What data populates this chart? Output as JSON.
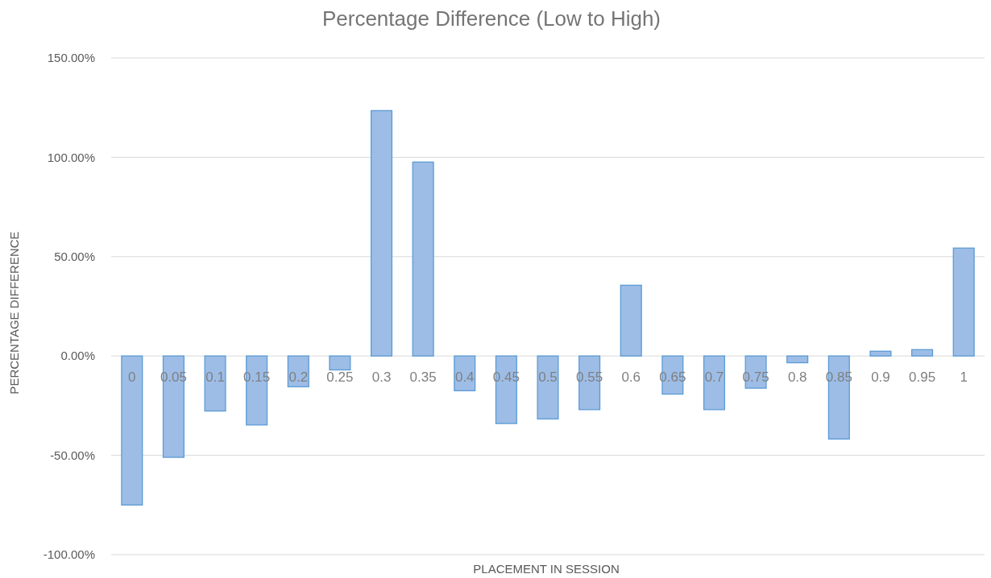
{
  "chart_data": {
    "type": "bar",
    "title": "Percentage Difference (Low to High)",
    "xlabel": "PLACEMENT IN SESSION",
    "ylabel": "PERCENTAGE DIFFERENCE",
    "categories": [
      "0",
      "0.05",
      "0.1",
      "0.15",
      "0.2",
      "0.25",
      "0.3",
      "0.35",
      "0.4",
      "0.45",
      "0.5",
      "0.55",
      "0.6",
      "0.65",
      "0.7",
      "0.75",
      "0.8",
      "0.85",
      "0.9",
      "0.95",
      "1"
    ],
    "values": [
      -75,
      -51,
      -27.7,
      -34.7,
      -15.5,
      -7,
      123.5,
      97.6,
      -17.5,
      -34,
      -31.7,
      -27,
      35.6,
      -19.2,
      -27,
      -16.2,
      -3.4,
      -41.8,
      2.4,
      3.2,
      54.3
    ],
    "color": "#9dbde6",
    "ylim": [
      -100,
      150
    ],
    "yticks": [
      {
        "value": -100,
        "label": "-100.00%"
      },
      {
        "value": -50,
        "label": "-50.00%"
      },
      {
        "value": 0,
        "label": "0.00%"
      },
      {
        "value": 50,
        "label": "50.00%"
      },
      {
        "value": 100,
        "label": "100.00%"
      },
      {
        "value": 150,
        "label": "150.00%"
      }
    ],
    "grid": "y"
  }
}
